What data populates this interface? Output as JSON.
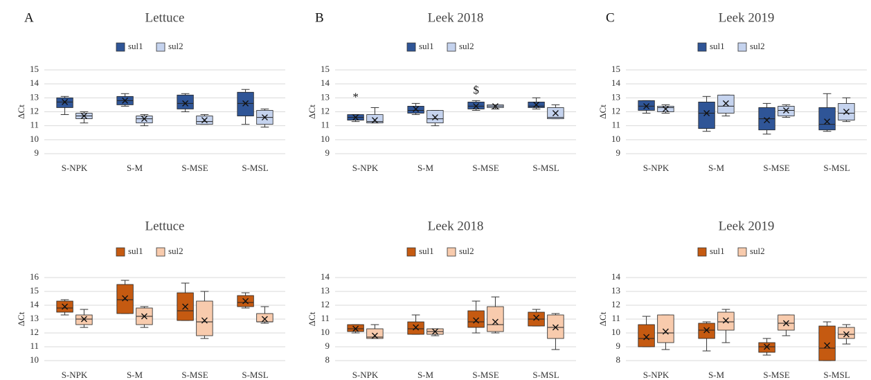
{
  "chart_data": [
    {
      "type": "box",
      "panel_label": "A",
      "title": "Lettuce",
      "y_label": "ΔCt",
      "categories": [
        "S-NPK",
        "S-M",
        "S-MSE",
        "S-MSL"
      ],
      "ylim": [
        9,
        15
      ],
      "yticks": [
        9,
        10,
        11,
        12,
        13,
        14,
        15
      ],
      "grid": true,
      "series": [
        {
          "name": "sul1",
          "color": "#2f5597",
          "boxes": [
            {
              "min": 11.8,
              "q1": 12.3,
              "median": 12.7,
              "q3": 13.0,
              "max": 13.1,
              "mean": 12.7
            },
            {
              "min": 12.4,
              "q1": 12.5,
              "median": 12.8,
              "q3": 13.1,
              "max": 13.3,
              "mean": 12.8
            },
            {
              "min": 12.0,
              "q1": 12.2,
              "median": 12.6,
              "q3": 13.2,
              "max": 13.3,
              "mean": 12.6
            },
            {
              "min": 11.1,
              "q1": 11.7,
              "median": 12.6,
              "q3": 13.4,
              "max": 13.6,
              "mean": 12.6
            }
          ]
        },
        {
          "name": "sul2",
          "color": "#c5d3ee",
          "boxes": [
            {
              "min": 11.2,
              "q1": 11.5,
              "median": 11.7,
              "q3": 11.9,
              "max": 12.0,
              "mean": 11.7
            },
            {
              "min": 11.0,
              "q1": 11.2,
              "median": 11.5,
              "q3": 11.7,
              "max": 11.8,
              "mean": 11.5
            },
            {
              "min": 11.1,
              "q1": 11.1,
              "median": 11.3,
              "q3": 11.7,
              "max": 11.8,
              "mean": 11.4
            },
            {
              "min": 10.9,
              "q1": 11.1,
              "median": 11.6,
              "q3": 12.1,
              "max": 12.2,
              "mean": 11.6
            }
          ]
        }
      ]
    },
    {
      "type": "box",
      "panel_label": "B",
      "title": "Leek 2018",
      "y_label": "ΔCt",
      "categories": [
        "S-NPK",
        "S-M",
        "S-MSE",
        "S-MSL"
      ],
      "ylim": [
        9,
        15
      ],
      "yticks": [
        9,
        10,
        11,
        12,
        13,
        14,
        15
      ],
      "grid": true,
      "annotations": [
        "*",
        "$"
      ],
      "series": [
        {
          "name": "sul1",
          "color": "#2f5597",
          "boxes": [
            {
              "min": 11.3,
              "q1": 11.4,
              "median": 11.6,
              "q3": 11.8,
              "max": 11.8,
              "mean": 11.6
            },
            {
              "min": 11.8,
              "q1": 11.9,
              "median": 12.1,
              "q3": 12.4,
              "max": 12.6,
              "mean": 12.2
            },
            {
              "min": 12.1,
              "q1": 12.2,
              "median": 12.4,
              "q3": 12.7,
              "max": 12.8,
              "mean": 12.4
            },
            {
              "min": 12.2,
              "q1": 12.3,
              "median": 12.4,
              "q3": 12.7,
              "max": 13.0,
              "mean": 12.5
            }
          ]
        },
        {
          "name": "sul2",
          "color": "#c5d3ee",
          "boxes": [
            {
              "min": 11.2,
              "q1": 11.2,
              "median": 11.3,
              "q3": 11.8,
              "max": 12.3,
              "mean": 11.4
            },
            {
              "min": 11.0,
              "q1": 11.2,
              "median": 11.5,
              "q3": 12.1,
              "max": 12.1,
              "mean": 11.6
            },
            {
              "min": 12.2,
              "q1": 12.3,
              "median": 12.4,
              "q3": 12.5,
              "max": 12.5,
              "mean": 12.4
            },
            {
              "min": 11.5,
              "q1": 11.5,
              "median": 11.6,
              "q3": 12.3,
              "max": 12.5,
              "mean": 11.9
            }
          ]
        }
      ]
    },
    {
      "type": "box",
      "panel_label": "C",
      "title": "Leek 2019",
      "y_label": "ΔCt",
      "categories": [
        "S-NPK",
        "S-M",
        "S-MSE",
        "S-MSL"
      ],
      "ylim": [
        9,
        15
      ],
      "yticks": [
        9,
        10,
        11,
        12,
        13,
        14,
        15
      ],
      "grid": true,
      "series": [
        {
          "name": "sul1",
          "color": "#2f5597",
          "boxes": [
            {
              "min": 11.9,
              "q1": 12.1,
              "median": 12.4,
              "q3": 12.8,
              "max": 12.8,
              "mean": 12.4
            },
            {
              "min": 10.6,
              "q1": 10.8,
              "median": 11.9,
              "q3": 12.7,
              "max": 13.1,
              "mean": 11.9
            },
            {
              "min": 10.4,
              "q1": 10.7,
              "median": 11.5,
              "q3": 12.3,
              "max": 12.6,
              "mean": 11.4
            },
            {
              "min": 10.6,
              "q1": 10.7,
              "median": 11.1,
              "q3": 12.3,
              "max": 13.3,
              "mean": 11.3
            }
          ]
        },
        {
          "name": "sul2",
          "color": "#c5d3ee",
          "boxes": [
            {
              "min": 11.9,
              "q1": 12.0,
              "median": 12.3,
              "q3": 12.4,
              "max": 12.5,
              "mean": 12.2
            },
            {
              "min": 11.7,
              "q1": 11.9,
              "median": 12.4,
              "q3": 13.2,
              "max": 13.2,
              "mean": 12.6
            },
            {
              "min": 11.6,
              "q1": 11.7,
              "median": 12.1,
              "q3": 12.4,
              "max": 12.5,
              "mean": 12.1
            },
            {
              "min": 11.3,
              "q1": 11.4,
              "median": 11.9,
              "q3": 12.6,
              "max": 13.0,
              "mean": 12.0
            }
          ]
        }
      ]
    },
    {
      "type": "box",
      "title": "Lettuce",
      "y_label": "ΔCt",
      "categories": [
        "S-NPK",
        "S-M",
        "S-MSE",
        "S-MSL"
      ],
      "ylim": [
        10,
        16
      ],
      "yticks": [
        10,
        11,
        12,
        13,
        14,
        15,
        16
      ],
      "grid": true,
      "series": [
        {
          "name": "sul1",
          "color": "#c55a11",
          "boxes": [
            {
              "min": 13.3,
              "q1": 13.5,
              "median": 13.8,
              "q3": 14.3,
              "max": 14.4,
              "mean": 13.9
            },
            {
              "min": 13.4,
              "q1": 13.4,
              "median": 14.4,
              "q3": 15.5,
              "max": 15.8,
              "mean": 14.5
            },
            {
              "min": 12.9,
              "q1": 12.9,
              "median": 13.6,
              "q3": 14.9,
              "max": 15.6,
              "mean": 13.9
            },
            {
              "min": 13.8,
              "q1": 13.9,
              "median": 14.2,
              "q3": 14.7,
              "max": 14.9,
              "mean": 14.3
            }
          ]
        },
        {
          "name": "sul2",
          "color": "#f8cbad",
          "boxes": [
            {
              "min": 12.4,
              "q1": 12.6,
              "median": 13.0,
              "q3": 13.3,
              "max": 13.7,
              "mean": 13.0
            },
            {
              "min": 12.4,
              "q1": 12.6,
              "median": 13.2,
              "q3": 13.8,
              "max": 13.9,
              "mean": 13.2
            },
            {
              "min": 11.6,
              "q1": 11.8,
              "median": 12.8,
              "q3": 14.3,
              "max": 15.0,
              "mean": 12.9
            },
            {
              "min": 12.7,
              "q1": 12.8,
              "median": 12.8,
              "q3": 13.4,
              "max": 13.9,
              "mean": 13.0
            }
          ]
        }
      ]
    },
    {
      "type": "box",
      "title": "Leek 2018",
      "y_label": "ΔCt",
      "categories": [
        "S-NPK",
        "S-M",
        "S-MSE",
        "S-MSL"
      ],
      "ylim": [
        8,
        14
      ],
      "yticks": [
        8,
        9,
        10,
        11,
        12,
        13,
        14
      ],
      "grid": true,
      "series": [
        {
          "name": "sul1",
          "color": "#c55a11",
          "boxes": [
            {
              "min": 10.0,
              "q1": 10.1,
              "median": 10.3,
              "q3": 10.6,
              "max": 10.6,
              "mean": 10.3
            },
            {
              "min": 9.9,
              "q1": 9.9,
              "median": 10.3,
              "q3": 10.8,
              "max": 11.3,
              "mean": 10.4
            },
            {
              "min": 10.0,
              "q1": 10.4,
              "median": 10.8,
              "q3": 11.6,
              "max": 12.3,
              "mean": 10.9
            },
            {
              "min": 10.5,
              "q1": 10.5,
              "median": 11.0,
              "q3": 11.5,
              "max": 11.7,
              "mean": 11.1
            }
          ]
        },
        {
          "name": "sul2",
          "color": "#f8cbad",
          "boxes": [
            {
              "min": 9.6,
              "q1": 9.6,
              "median": 9.7,
              "q3": 10.3,
              "max": 10.6,
              "mean": 9.8
            },
            {
              "min": 9.8,
              "q1": 9.9,
              "median": 10.1,
              "q3": 10.3,
              "max": 10.3,
              "mean": 10.1
            },
            {
              "min": 10.0,
              "q1": 10.1,
              "median": 10.6,
              "q3": 11.9,
              "max": 12.6,
              "mean": 10.8
            },
            {
              "min": 8.8,
              "q1": 9.6,
              "median": 10.4,
              "q3": 11.3,
              "max": 11.4,
              "mean": 10.4
            }
          ]
        }
      ]
    },
    {
      "type": "box",
      "title": "Leek 2019",
      "y_label": "ΔCt",
      "categories": [
        "S-NPK",
        "S-M",
        "S-MSE",
        "S-MSL"
      ],
      "ylim": [
        8,
        14
      ],
      "yticks": [
        8,
        9,
        10,
        11,
        12,
        13,
        14
      ],
      "grid": true,
      "series": [
        {
          "name": "sul1",
          "color": "#c55a11",
          "boxes": [
            {
              "min": 9.0,
              "q1": 9.0,
              "median": 9.6,
              "q3": 10.6,
              "max": 11.2,
              "mean": 9.7
            },
            {
              "min": 8.7,
              "q1": 9.6,
              "median": 10.2,
              "q3": 10.7,
              "max": 10.8,
              "mean": 10.2
            },
            {
              "min": 8.4,
              "q1": 8.6,
              "median": 9.0,
              "q3": 9.3,
              "max": 9.6,
              "mean": 9.0
            },
            {
              "min": 8.0,
              "q1": 8.0,
              "median": 8.9,
              "q3": 10.5,
              "max": 10.8,
              "mean": 9.1
            }
          ]
        },
        {
          "name": "sul2",
          "color": "#f8cbad",
          "boxes": [
            {
              "min": 8.8,
              "q1": 9.3,
              "median": 10.0,
              "q3": 11.3,
              "max": 11.3,
              "mean": 10.1
            },
            {
              "min": 9.3,
              "q1": 10.2,
              "median": 10.8,
              "q3": 11.5,
              "max": 11.7,
              "mean": 10.9
            },
            {
              "min": 9.8,
              "q1": 10.2,
              "median": 10.7,
              "q3": 11.3,
              "max": 11.3,
              "mean": 10.7
            },
            {
              "min": 9.2,
              "q1": 9.6,
              "median": 9.9,
              "q3": 10.4,
              "max": 10.6,
              "mean": 9.9
            }
          ]
        }
      ]
    }
  ]
}
